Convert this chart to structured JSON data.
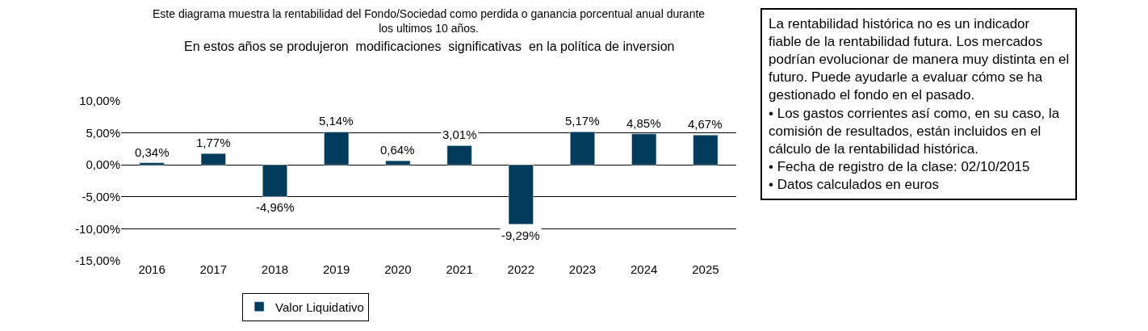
{
  "chart_data": {
    "type": "bar",
    "title": "Este diagrama muestra la rentabilidad del Fondo/Sociedad como perdida o ganancia porcentual anual durante\nlos ultimos 10 años.",
    "subtitle": "En estos años se produjeron  modificaciones  significativas  en la política de inversion",
    "categories": [
      "2016",
      "2017",
      "2018",
      "2019",
      "2020",
      "2021",
      "2022",
      "2023",
      "2024",
      "2025"
    ],
    "series": [
      {
        "name": "Valor Liquidativo",
        "color": "#003b5c",
        "values": [
          0.34,
          1.77,
          -4.96,
          5.14,
          0.64,
          3.01,
          -9.29,
          5.17,
          4.85,
          4.67
        ],
        "value_labels": [
          "0,34%",
          "1,77%",
          "-4,96%",
          "5,14%",
          "0,64%",
          "3,01%",
          "-9,29%",
          "5,17%",
          "4,85%",
          "4,67%"
        ]
      }
    ],
    "ylim": [
      -15,
      10
    ],
    "yticks": [
      {
        "value": -15,
        "label": "-15,00%"
      },
      {
        "value": -10,
        "label": "-10,00%"
      },
      {
        "value": -5,
        "label": "-5,00%"
      },
      {
        "value": 0,
        "label": "0,00%"
      },
      {
        "value": 5,
        "label": "5,00%"
      },
      {
        "value": 10,
        "label": "10,00%"
      }
    ],
    "grid": "y",
    "legend": "bottom",
    "annotations": [
      "La rentabilidad histórica no es un indicador fiable de la rentabilidad futura. Los mercados podrían evolucionar de manera muy distinta en el futuro. Puede ayudarle a evaluar cómo se ha gestionado el fondo en el pasado.\n• Los gastos corrientes así como, en su caso, la comisión de resultados, están incluidos en el cálculo de la rentabilidad histórica.\n• Fecha de registro de la clase: 02/10/2015\n• Datos calculados en euros"
    ]
  }
}
